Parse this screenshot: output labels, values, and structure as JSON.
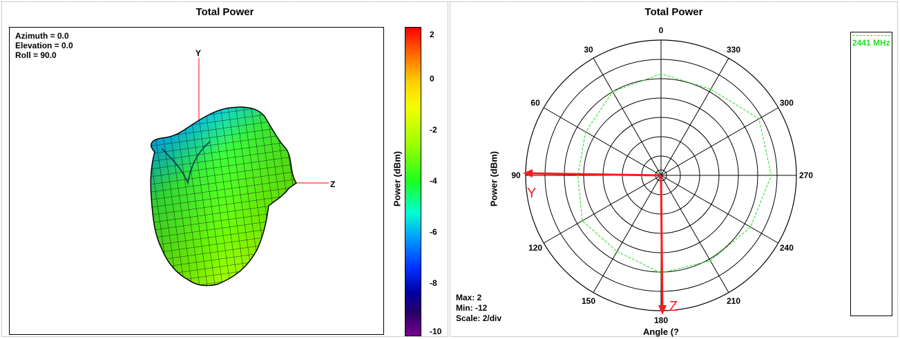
{
  "left": {
    "title": "Total Power",
    "info": [
      "Azimuth = 0.0",
      "Elevation = 0.0",
      "Roll = 90.0"
    ],
    "axis_y": "Y",
    "axis_z": "Z",
    "colorbar": {
      "label": "Power  (dBm)",
      "ticks": [
        "2",
        "0",
        "-2",
        "-4",
        "-6",
        "-8",
        "-10"
      ],
      "colors": [
        "#ff0000",
        "#ffd200",
        "#9bff00",
        "#1cff20",
        "#00ffd0",
        "#00a0ff",
        "#0030ff",
        "#0000a0",
        "#7a0090"
      ]
    }
  },
  "right": {
    "title": "Total Power",
    "ylabel": "Power  (dBm)",
    "xlabel": "Angle  (?",
    "stats": {
      "max": "Max: 2",
      "min": "Min: -12",
      "scale": "Scale: 2/div"
    },
    "arrow_y": "Y",
    "arrow_z": "Z"
  },
  "chart_data": {
    "type": "polar",
    "title": "Total Power",
    "angle_labels": [
      "0",
      "330",
      "300",
      "270",
      "240",
      "210",
      "180",
      "150",
      "120",
      "90",
      "60",
      "30"
    ],
    "angle_direction": "counterclockwise",
    "angle_zero": "top",
    "r_min": -12,
    "r_max": 2,
    "r_step": 2,
    "series": [
      {
        "name": "2441 MHz",
        "color": "#22dd22",
        "style": "dashed",
        "angles": [
          0,
          30,
          60,
          90,
          120,
          150,
          180,
          210,
          240,
          270,
          300,
          330
        ],
        "values": [
          -1.5,
          -2.0,
          -3.0,
          -3.4,
          -2.6,
          -2.9,
          -1.9,
          -1.8,
          -1.3,
          -0.6,
          -0.3,
          -1.7
        ]
      }
    ],
    "legend": "right"
  }
}
